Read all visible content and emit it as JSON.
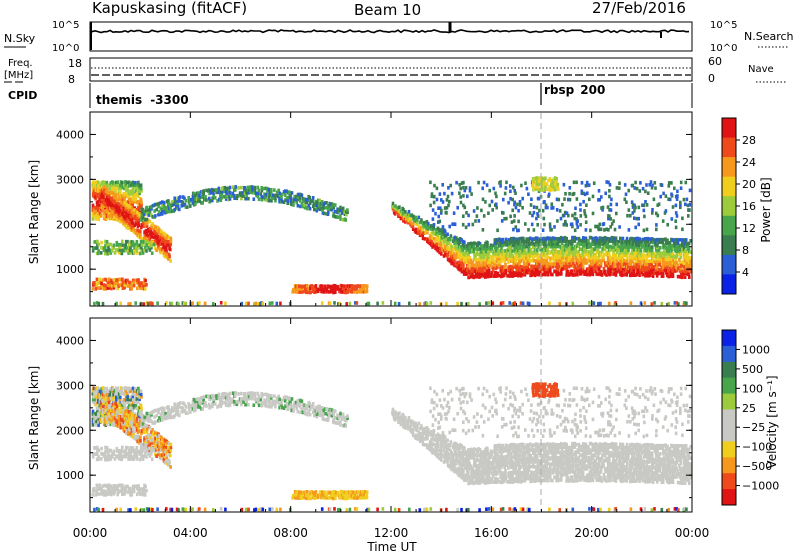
{
  "header": {
    "station": "Kapuskasing (fitACF)",
    "beam": "Beam 10",
    "date": "27/Feb/2016"
  },
  "status_panels": {
    "nsky_label": "N.Sky",
    "nsearch_label": "N.Search",
    "nsky_ticks": [
      "10^5",
      "10^0"
    ],
    "nsearch_ticks": [
      "10^5",
      "10^0"
    ],
    "freq_label_1": "Freq.",
    "freq_label_2": "[MHz]",
    "freq_ticks": [
      "18",
      "8"
    ],
    "nave_ticks": [
      "60",
      "0"
    ],
    "nave_label": "Nave",
    "cpid_label": "CPID",
    "cpid_segments": [
      {
        "name": "themis",
        "value": "-3300",
        "start_hour": 0
      },
      {
        "name": "rbsp",
        "value": "200",
        "start_hour": 18
      }
    ]
  },
  "colors": {
    "power_scale": [
      "#0a22e6",
      "#2b5fd6",
      "#3a7e4f",
      "#47a64c",
      "#9ccc3c",
      "#f0ce1e",
      "#f5981d",
      "#ee4a1c",
      "#e01414"
    ],
    "velocity_scale": [
      "#e01414",
      "#ee4a1c",
      "#f5981d",
      "#f0ce1e",
      "#c8c8c4",
      "#c8c8c4",
      "#9ccc3c",
      "#47a64c",
      "#3a7e4f",
      "#2b5fd6",
      "#0a22e6"
    ],
    "ground_scatter": "#c8c8c4"
  },
  "chart_data": [
    {
      "type": "heatmap",
      "panel": "power",
      "ylabel": "Slant Range [km]",
      "xlabel": "",
      "x_ticks": [
        "00:00",
        "04:00",
        "08:00",
        "12:00",
        "16:00",
        "20:00",
        "00:00"
      ],
      "y_ticks": [
        "1000",
        "2000",
        "3000",
        "4000"
      ],
      "xlim_hours": [
        0,
        24
      ],
      "ylim_km": [
        180,
        4500
      ],
      "colorbar": {
        "label": "Power [dB]",
        "ticks": [
          "28",
          "24",
          "20",
          "16",
          "12",
          "8",
          "4"
        ],
        "range": [
          0,
          30
        ]
      },
      "features": [
        {
          "desc": "evening ionospheric scatter band",
          "t_start": 0.0,
          "t_end": 2.0,
          "range_km": [
            2200,
            3000
          ],
          "power_db": [
            10,
            28
          ]
        },
        {
          "desc": "descending band",
          "t_start": 0.5,
          "t_end": 3.2,
          "range_km": [
            1200,
            2500
          ],
          "power_db": [
            14,
            28
          ]
        },
        {
          "desc": "upper arc",
          "t_start": 2.0,
          "t_end": 10.2,
          "range_km": [
            2100,
            2900
          ],
          "power_db": [
            4,
            14
          ]
        },
        {
          "desc": "near-range patch",
          "t_start": 8.0,
          "t_end": 11.0,
          "range_km": [
            500,
            700
          ],
          "power_db": [
            16,
            28
          ]
        },
        {
          "desc": "morning ground scatter band",
          "t_start": 12.0,
          "t_end": 24.0,
          "range_km": [
            800,
            2300
          ],
          "power_db": [
            4,
            28
          ]
        }
      ]
    },
    {
      "type": "heatmap",
      "panel": "velocity",
      "ylabel": "Slant Range [km]",
      "xlabel": "Time UT",
      "x_ticks": [
        "00:00",
        "04:00",
        "08:00",
        "12:00",
        "16:00",
        "20:00",
        "00:00"
      ],
      "y_ticks": [
        "1000",
        "2000",
        "3000",
        "4000"
      ],
      "xlim_hours": [
        0,
        24
      ],
      "ylim_km": [
        180,
        4500
      ],
      "colorbar": {
        "label": "Velocity [m s⁻¹]",
        "ticks": [
          "1000",
          "500",
          "100",
          "25",
          "−25",
          "−100",
          "−500",
          "−1000"
        ],
        "range": [
          -1200,
          1200
        ]
      }
    }
  ]
}
